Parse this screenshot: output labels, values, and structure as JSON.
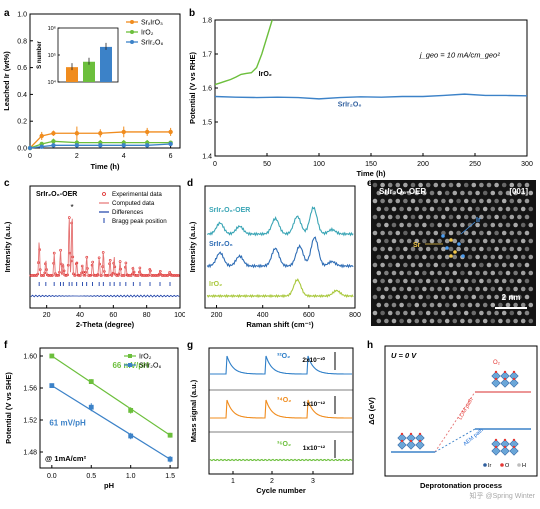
{
  "figure": {
    "panel_labels": [
      "a",
      "b",
      "c",
      "d",
      "e",
      "f",
      "g",
      "h"
    ],
    "watermark": "知乎 @Spring Winter"
  },
  "chart_data": [
    {
      "id": "a",
      "type": "line",
      "xlabel": "Time (h)",
      "ylabel": "Leached Ir (wt%)",
      "xlim": [
        0,
        6.4
      ],
      "ylim": [
        0,
        1.0
      ],
      "xticks": [
        "0",
        "2",
        "4",
        "6"
      ],
      "yticks": [
        "0.0",
        "0.2",
        "0.4",
        "0.6",
        "0.8",
        "1.0"
      ],
      "x": [
        0,
        0.5,
        1,
        2,
        3,
        4,
        5,
        6
      ],
      "series": [
        {
          "name": "SrₓIrO₃",
          "color": "#f08c1e",
          "values": [
            0.0,
            0.09,
            0.11,
            0.11,
            0.11,
            0.12,
            0.12,
            0.12
          ],
          "err": [
            0.01,
            0.03,
            0.02,
            0.05,
            0.03,
            0.04,
            0.03,
            0.03
          ]
        },
        {
          "name": "IrO₂",
          "color": "#6cbf3c",
          "values": [
            0.0,
            0.03,
            0.05,
            0.04,
            0.04,
            0.04,
            0.04,
            0.04
          ],
          "err": [
            0.005,
            0.01,
            0.02,
            0.02,
            0.02,
            0.02,
            0.02,
            0.01
          ]
        },
        {
          "name": "SrIr₂O₆",
          "color": "#3c82c8",
          "values": [
            0.0,
            0.01,
            0.02,
            0.02,
            0.02,
            0.02,
            0.02,
            0.03
          ],
          "err": [
            0.005,
            0.01,
            0.01,
            0.01,
            0.01,
            0.01,
            0.01,
            0.01
          ]
        }
      ],
      "inset": {
        "type": "bar",
        "ylabel": "S number",
        "ytick_labels": [
          "10⁴",
          "10⁵",
          "10⁶"
        ],
        "log_values": [
          4.55,
          4.75,
          5.3
        ],
        "colors": [
          "#f08c1e",
          "#6cbf3c",
          "#3c82c8"
        ]
      }
    },
    {
      "id": "b",
      "type": "line",
      "xlabel": "Time (h)",
      "ylabel": "Potential (V vs RHE)",
      "xlim": [
        0,
        300
      ],
      "ylim": [
        1.4,
        1.8
      ],
      "xticks": [
        "0",
        "50",
        "100",
        "150",
        "200",
        "250",
        "300"
      ],
      "yticks": [
        "1.4",
        "1.5",
        "1.6",
        "1.7",
        "1.8"
      ],
      "annotation": "j_geo = 10 mA/cm_geo²",
      "series": [
        {
          "name": "IrO₂",
          "color": "#6cbf3c",
          "x": [
            0,
            5,
            10,
            15,
            20,
            25,
            30,
            35,
            40,
            45,
            50,
            55
          ],
          "values": [
            1.61,
            1.615,
            1.62,
            1.625,
            1.632,
            1.64,
            1.643,
            1.645,
            1.66,
            1.7,
            1.75,
            1.8
          ]
        },
        {
          "name": "SrIr₂O₆",
          "color": "#3c82c8",
          "x": [
            0,
            20,
            40,
            60,
            80,
            100,
            120,
            140,
            160,
            180,
            200,
            220,
            240,
            260,
            280,
            300
          ],
          "values": [
            1.575,
            1.573,
            1.572,
            1.573,
            1.572,
            1.568,
            1.572,
            1.574,
            1.573,
            1.575,
            1.575,
            1.578,
            1.582,
            1.578,
            1.578,
            1.577
          ]
        }
      ]
    },
    {
      "id": "c",
      "type": "line",
      "title": "SrIr₂O₆-OER",
      "xlabel": "2-Theta (degree)",
      "ylabel": "Intensity (a.u.)",
      "xlim": [
        10,
        100
      ],
      "xticks": [
        "20",
        "40",
        "60",
        "80",
        "100"
      ],
      "legend": [
        "Experimental data",
        "Computed data",
        "Differences",
        "Bragg peak position"
      ],
      "star_label": "*",
      "peaks": [
        {
          "x": 15.5,
          "h": 0.55
        },
        {
          "x": 19.5,
          "h": 0.25
        },
        {
          "x": 24.5,
          "h": 0.35
        },
        {
          "x": 28.3,
          "h": 0.4
        },
        {
          "x": 30.0,
          "h": 0.2
        },
        {
          "x": 33.5,
          "h": 0.95
        },
        {
          "x": 35.2,
          "h": 1.0
        },
        {
          "x": 38.0,
          "h": 0.22
        },
        {
          "x": 41.5,
          "h": 0.18
        },
        {
          "x": 44.0,
          "h": 0.3
        },
        {
          "x": 47.5,
          "h": 0.22
        },
        {
          "x": 51.5,
          "h": 0.28
        },
        {
          "x": 54.0,
          "h": 0.38
        },
        {
          "x": 58.0,
          "h": 0.25
        },
        {
          "x": 60.5,
          "h": 0.3
        },
        {
          "x": 64.0,
          "h": 0.22
        },
        {
          "x": 67.5,
          "h": 0.2
        },
        {
          "x": 72.0,
          "h": 0.15
        },
        {
          "x": 76.0,
          "h": 0.12
        },
        {
          "x": 82.0,
          "h": 0.1
        },
        {
          "x": 88.0,
          "h": 0.08
        },
        {
          "x": 94.0,
          "h": 0.06
        }
      ]
    },
    {
      "id": "d",
      "type": "line",
      "xlabel": "Raman shift (cm⁻¹)",
      "ylabel": "Intensity (a.u.)",
      "xlim": [
        150,
        800
      ],
      "xticks": [
        "200",
        "400",
        "600",
        "800"
      ],
      "series": [
        {
          "name": "SrIr₂O₆-OER",
          "color": "#3aa5b5",
          "peaks": [
            [
              215,
              0.5
            ],
            [
              300,
              0.35
            ],
            [
              455,
              0.7
            ],
            [
              550,
              0.8
            ],
            [
              620,
              1.2
            ],
            [
              700,
              0.2
            ]
          ]
        },
        {
          "name": "SrIr₂O₆",
          "color": "#2f6db5",
          "peaks": [
            [
              215,
              0.6
            ],
            [
              300,
              0.45
            ],
            [
              455,
              0.8
            ],
            [
              560,
              0.9
            ],
            [
              625,
              1.3
            ],
            [
              700,
              0.2
            ]
          ]
        },
        {
          "name": "IrO₂",
          "color": "#a9c83c",
          "peaks": [
            [
              550,
              0.9
            ],
            [
              720,
              0.3
            ]
          ]
        }
      ]
    },
    {
      "id": "f",
      "type": "scatter",
      "xlabel": "pH",
      "ylabel": "Potential (V vs SHE)",
      "xlim": [
        -0.15,
        1.6
      ],
      "ylim": [
        1.46,
        1.61
      ],
      "xticks": [
        "0.0",
        "0.5",
        "1.0",
        "1.5"
      ],
      "yticks": [
        "1.48",
        "1.52",
        "1.56",
        "1.60"
      ],
      "note": "@ 1mA/cm²",
      "series": [
        {
          "name": "IrO₂",
          "color": "#6cbf3c",
          "x": [
            0,
            0.5,
            1.0,
            1.5
          ],
          "values": [
            1.6,
            1.568,
            1.532,
            1.501
          ],
          "err": [
            0.002,
            0.003,
            0.004,
            0.003
          ],
          "slope_label": "66 mV/pH"
        },
        {
          "name": "SrIr₂O₆",
          "color": "#3c82c8",
          "x": [
            0,
            0.5,
            1.0,
            1.5
          ],
          "values": [
            1.563,
            1.536,
            1.5,
            1.471
          ],
          "err": [
            0.002,
            0.005,
            0.004,
            0.004
          ],
          "slope_label": "61 mV/pH"
        }
      ]
    },
    {
      "id": "g",
      "type": "line",
      "xlabel": "Cycle number",
      "ylabel": "Mass signal (a.u.)",
      "xticks": [
        "1",
        "2",
        "3"
      ],
      "series": [
        {
          "name": "³²O₂",
          "color": "#2f7fc8",
          "scale_label": "2x10⁻¹⁰"
        },
        {
          "name": "³⁴O₂",
          "color": "#f08c1e",
          "scale_label": "1x10⁻¹²"
        },
        {
          "name": "³⁶O₂",
          "color": "#6cbf3c",
          "scale_label": "1x10⁻¹²"
        }
      ]
    }
  ],
  "panel_e": {
    "title": "SrIr₂O₆-OER",
    "zone_axis": "[001]",
    "labels": {
      "ir": "Ir",
      "sr": "Sr"
    },
    "scalebar": "2 nm"
  },
  "panel_h": {
    "condition": "U = 0 V",
    "ylabel": "ΔG (eV)",
    "xlabel": "Deprotonation process",
    "path_labels": [
      "LOM path",
      "AEM path"
    ],
    "o2_label": "O₂",
    "legend": {
      "ir": "Ir",
      "o": "O",
      "h": "H"
    }
  }
}
